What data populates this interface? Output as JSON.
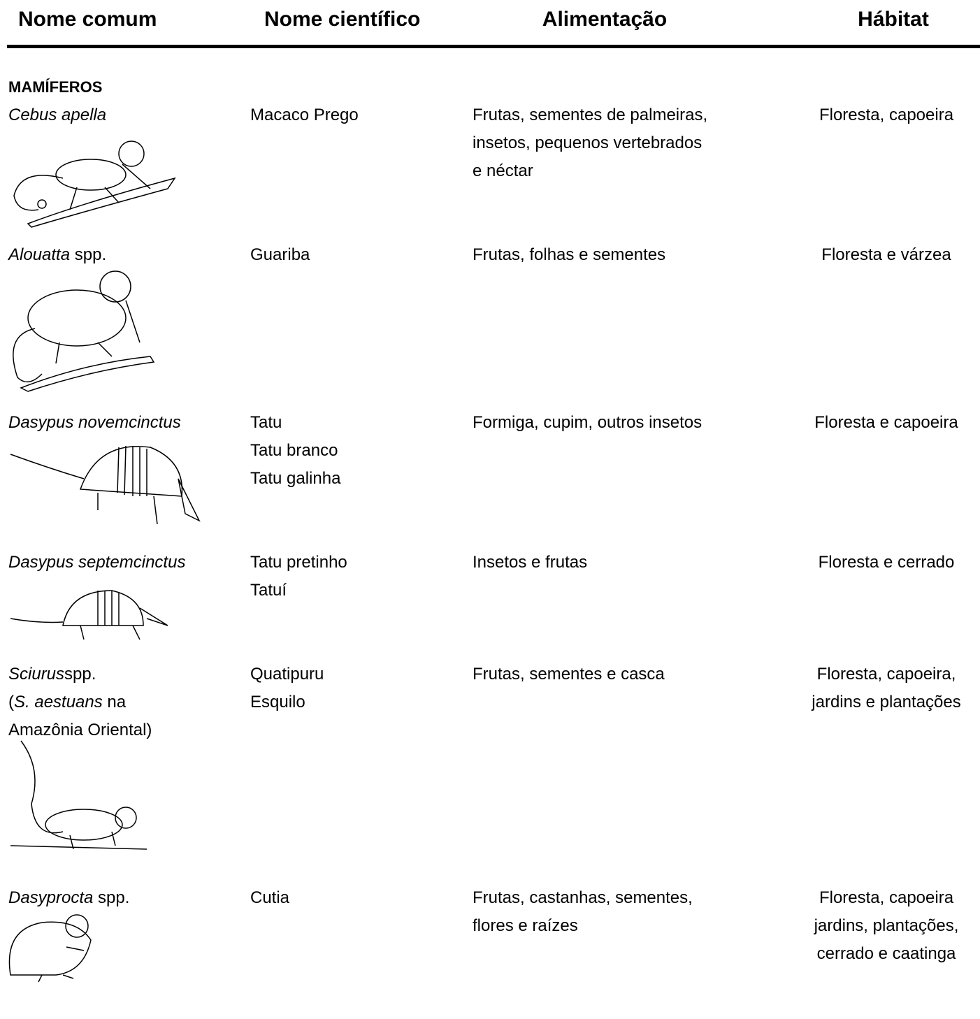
{
  "header": {
    "columns": [
      "Nome comum",
      "Nome científico",
      "Alimentação",
      "Hábitat"
    ]
  },
  "section": {
    "title": "MAMÍFEROS"
  },
  "rows": [
    {
      "name": [
        [
          {
            "text": "Cebus apella",
            "italic": true
          }
        ]
      ],
      "common": [
        "Macaco Prego"
      ],
      "food": [
        "Frutas, sementes de palmeiras,",
        "insetos, pequenos vertebrados",
        "e néctar"
      ],
      "habitat": [
        "Floresta, capoeira"
      ]
    },
    {
      "name": [
        [
          {
            "text": "Alouatta",
            "italic": true
          },
          {
            "text": " spp.",
            "italic": false
          }
        ]
      ],
      "common": [
        "Guariba"
      ],
      "food": [
        "Frutas, folhas e sementes"
      ],
      "habitat": [
        "Floresta e várzea"
      ]
    },
    {
      "name": [
        [
          {
            "text": "Dasypus novemcinctus",
            "italic": true
          }
        ]
      ],
      "common": [
        "Tatu",
        "Tatu branco",
        "Tatu galinha"
      ],
      "food": [
        "Formiga, cupim, outros insetos"
      ],
      "habitat": [
        "Floresta e capoeira"
      ]
    },
    {
      "name": [
        [
          {
            "text": "Dasypus septemcinctus",
            "italic": true
          }
        ]
      ],
      "common": [
        "Tatu pretinho",
        "Tatuí"
      ],
      "food": [
        "Insetos e frutas"
      ],
      "habitat": [
        "Floresta e cerrado"
      ]
    },
    {
      "name": [
        [
          {
            "text": "Sciurus",
            "italic": true
          },
          {
            "text": "spp.",
            "italic": false
          }
        ],
        [
          {
            "text": "(",
            "italic": false
          },
          {
            "text": "S. aestuans",
            "italic": true
          },
          {
            "text": " na",
            "italic": false
          }
        ],
        [
          {
            "text": "Amazônia Oriental)",
            "italic": false
          }
        ]
      ],
      "common": [
        "Quatipuru",
        "Esquilo"
      ],
      "food": [
        "Frutas, sementes e casca"
      ],
      "habitat": [
        "Floresta, capoeira,",
        "jardins e plantações"
      ]
    },
    {
      "name": [
        [
          {
            "text": "Dasyprocta",
            "italic": true
          },
          {
            "text": " spp.",
            "italic": false
          }
        ]
      ],
      "common": [
        "Cutia"
      ],
      "food": [
        "Frutas, castanhas, sementes,",
        "flores e raízes"
      ],
      "habitat": [
        "Floresta, capoeira",
        "jardins, plantações,",
        "cerrado e caatinga"
      ]
    }
  ]
}
